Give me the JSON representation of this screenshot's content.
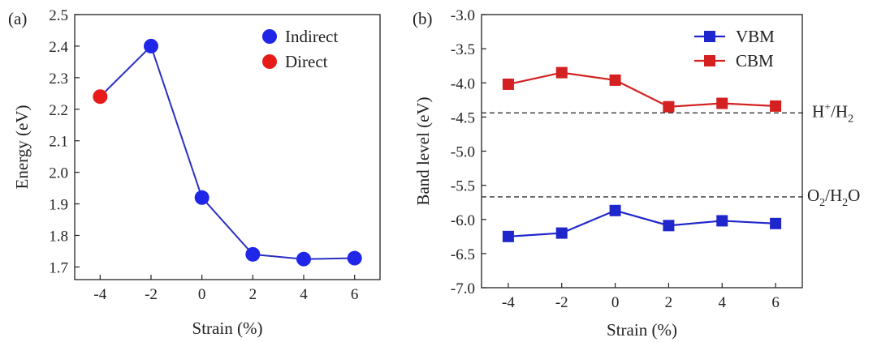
{
  "chart_data": [
    {
      "panel_label": "(a)",
      "type": "line",
      "x": [
        -4,
        -2,
        0,
        2,
        4,
        6
      ],
      "x_tick_labels": [
        "-4",
        "-2",
        "0",
        "2",
        "4",
        "6"
      ],
      "y": [
        2.24,
        2.4,
        1.92,
        1.74,
        1.725,
        1.728
      ],
      "point_type": [
        "Direct",
        "Indirect",
        "Indirect",
        "Indirect",
        "Indirect",
        "Indirect"
      ],
      "y_tick_labels": [
        "1.7",
        "1.8",
        "1.9",
        "2.0",
        "2.1",
        "2.2",
        "2.3",
        "2.4",
        "2.5"
      ],
      "xlabel": "Strain (%)",
      "ylabel": "Energy (eV)",
      "xlim": [
        -5,
        7
      ],
      "ylim": [
        1.66,
        2.5
      ],
      "legend": [
        {
          "name": "Indirect",
          "color": "#1f26e8"
        },
        {
          "name": "Direct",
          "color": "#e81b1b"
        }
      ],
      "line_color": "#2a2fc4",
      "legend_position": "top-right"
    },
    {
      "panel_label": "(b)",
      "type": "line",
      "x": [
        -4,
        -2,
        0,
        2,
        4,
        6
      ],
      "x_tick_labels": [
        "-4",
        "-2",
        "0",
        "2",
        "4",
        "6"
      ],
      "series": [
        {
          "name": "VBM",
          "color": "#1f26cc",
          "values": [
            -6.25,
            -6.2,
            -5.87,
            -6.09,
            -6.02,
            -6.06
          ]
        },
        {
          "name": "CBM",
          "color": "#d42020",
          "values": [
            -4.02,
            -3.85,
            -3.96,
            -4.35,
            -4.3,
            -4.34
          ]
        }
      ],
      "y_tick_labels": [
        "-7.0",
        "-6.5",
        "-6.0",
        "-5.5",
        "-5.0",
        "-4.5",
        "-4.0",
        "-3.5",
        "-3.0"
      ],
      "xlabel": "Strain (%)",
      "ylabel": "Band level (eV)",
      "xlim": [
        -5,
        7
      ],
      "ylim": [
        -7.0,
        -3.0
      ],
      "reference_lines": [
        {
          "value": -4.44,
          "label_parts": [
            "H",
            "+",
            "/H",
            "2"
          ]
        },
        {
          "value": -5.67,
          "label_parts": [
            "O",
            "2",
            "/H",
            "2",
            "O"
          ]
        }
      ],
      "legend_position": "top-right"
    }
  ]
}
